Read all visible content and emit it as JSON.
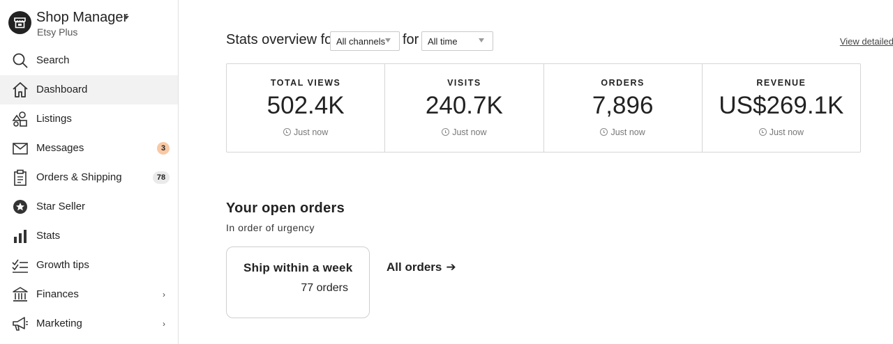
{
  "sidebar": {
    "brand": {
      "title": "Shop Manager",
      "subtitle": "Etsy Plus",
      "logo_icon": "shop-logo-icon"
    },
    "items": [
      {
        "label": "Search",
        "icon": "search-icon",
        "active": false
      },
      {
        "label": "Dashboard",
        "icon": "home-icon",
        "active": true
      },
      {
        "label": "Listings",
        "icon": "listings-icon",
        "active": false
      },
      {
        "label": "Messages",
        "icon": "envelope-icon",
        "active": false,
        "badge": "3"
      },
      {
        "label": "Orders & Shipping",
        "icon": "clipboard-icon",
        "active": false,
        "badge": "78"
      },
      {
        "label": "Star Seller",
        "icon": "star-badge-icon",
        "active": false
      },
      {
        "label": "Stats",
        "icon": "bar-chart-icon",
        "active": false
      },
      {
        "label": "Growth tips",
        "icon": "checklist-icon",
        "active": false
      },
      {
        "label": "Finances",
        "icon": "bank-icon",
        "active": false,
        "chevron": "›"
      },
      {
        "label": "Marketing",
        "icon": "megaphone-icon",
        "active": false,
        "chevron": "›"
      }
    ]
  },
  "stats": {
    "title": "Stats overview for",
    "for_text": "for",
    "channel_select": "All channels",
    "time_select": "All time",
    "view_link": "View detailed stats",
    "cards": [
      {
        "label": "TOTAL VIEWS",
        "value": "502.4K",
        "time": "Just now"
      },
      {
        "label": "VISITS",
        "value": "240.7K",
        "time": "Just now"
      },
      {
        "label": "ORDERS",
        "value": "7,896",
        "time": "Just now"
      },
      {
        "label": "REVENUE",
        "value": "US$269.1K",
        "time": "Just now"
      }
    ]
  },
  "open_orders": {
    "title": "Your open orders",
    "subtitle": "In order of urgency",
    "card_title": "Ship within a week",
    "card_count": "77 orders",
    "all_orders": "All orders",
    "all_orders_arrow": "➔"
  },
  "colors": {
    "active_bg": "#f2f2f2",
    "messages_badge": "#f8c9a4",
    "orders_badge": "#eaeaea"
  }
}
